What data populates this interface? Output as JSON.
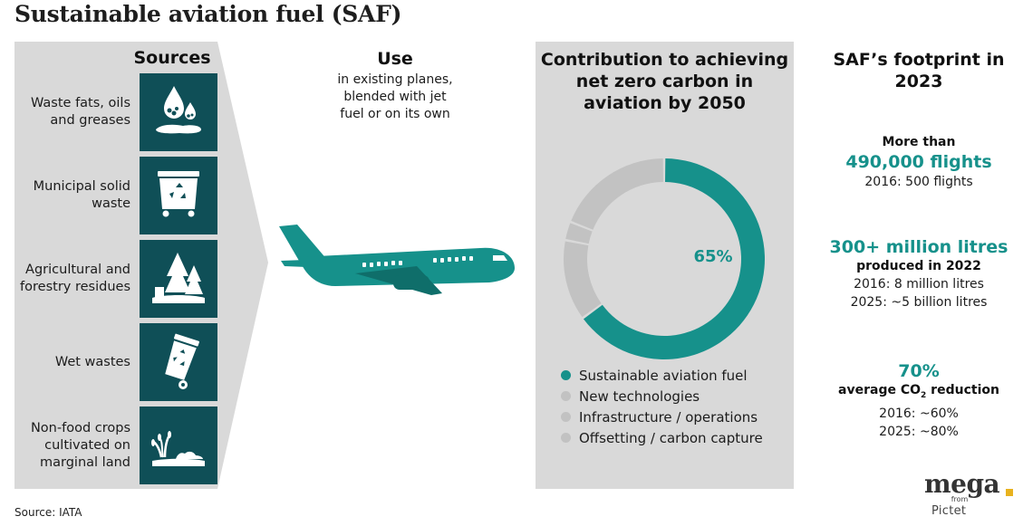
{
  "title": "Sustainable aviation fuel (SAF)",
  "sources": {
    "heading": "Sources",
    "items": [
      {
        "label": "Waste fats, oils and greases",
        "icon": "oil-drops-icon"
      },
      {
        "label": "Municipal solid waste",
        "icon": "recycling-dumpster-icon"
      },
      {
        "label": "Agricultural and forestry residues",
        "icon": "trees-stumps-icon"
      },
      {
        "label": "Wet wastes",
        "icon": "recycling-bin-icon"
      },
      {
        "label": "Non-food crops cultivated on marginal land",
        "icon": "crops-icon"
      }
    ]
  },
  "use": {
    "heading": "Use",
    "text": "in existing planes, blended with jet fuel or on its own"
  },
  "chart_data": {
    "type": "pie",
    "title": "Contribution to achieving net zero carbon in aviation by 2050",
    "center_label": "65%",
    "series": [
      {
        "name": "Sustainable aviation fuel",
        "value": 65,
        "color": "#16918b"
      },
      {
        "name": "New technologies",
        "value": 13,
        "color": "#c2c2c2"
      },
      {
        "name": "Infrastructure / operations",
        "value": 3,
        "color": "#c2c2c2"
      },
      {
        "name": "Offsetting / carbon capture",
        "value": 19,
        "color": "#c2c2c2"
      }
    ],
    "legend_placement": "bottom"
  },
  "footprint": {
    "heading": "SAF’s footprint in 2023",
    "flights": {
      "prefix": "More than",
      "value": "490,000 flights",
      "compare": "2016: 500 flights"
    },
    "litres": {
      "value": "300+ million litres",
      "subtitle": "produced in 2022",
      "compare_2016": "2016: 8 million litres",
      "compare_2025": "2025: ~5 billion litres"
    },
    "co2": {
      "value": "70%",
      "label_pre": "average CO",
      "label_sub": "2",
      "label_post": " reduction",
      "compare_2016": "2016: ~60%",
      "compare_2025": "2025: ~80%"
    }
  },
  "source_note": "Source: IATA",
  "logo": {
    "main": "mega",
    "from": "from",
    "brand": "Pictet"
  },
  "colors": {
    "teal": "#16918b",
    "dark_teal": "#0f4f57",
    "panel_gray": "#d9d9d9",
    "slice_gray": "#c2c2c2",
    "accent_yellow": "#e8b21e"
  }
}
